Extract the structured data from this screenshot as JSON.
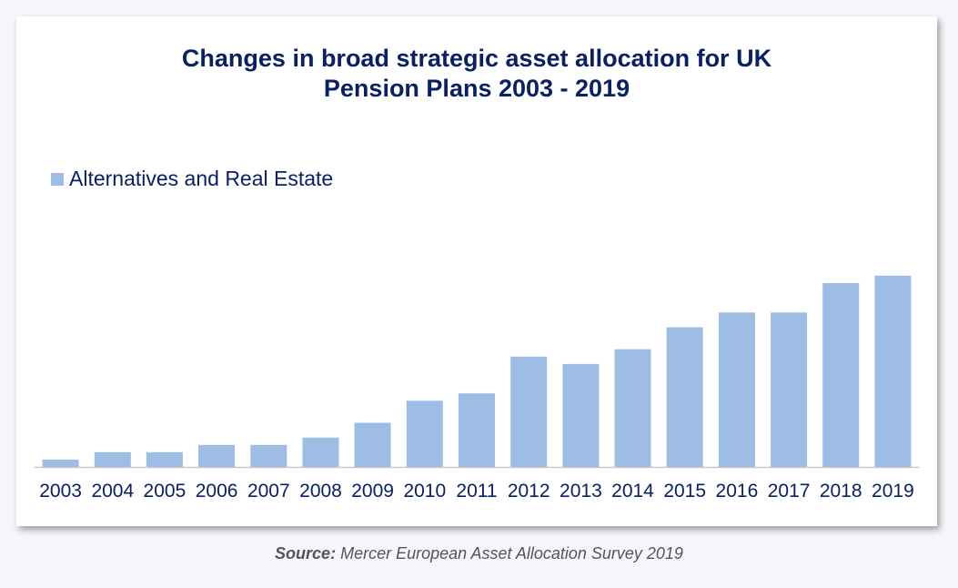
{
  "source": {
    "label": "Source:",
    "text": " Mercer European Asset Allocation Survey 2019"
  },
  "colors": {
    "bar": "#9dbde4",
    "title": "#0a2161",
    "axis_text": "#0a2161",
    "axis_line": "#c8c8c8"
  },
  "chart_data": {
    "type": "bar",
    "title_line1": "Changes in broad strategic asset allocation for UK",
    "title_line2": "Pension Plans 2003 - 2019",
    "legend_position": "top-left",
    "grid": false,
    "y_axis_shown": false,
    "ylim": [
      0,
      30
    ],
    "categories": [
      "2003",
      "2004",
      "2005",
      "2006",
      "2007",
      "2008",
      "2009",
      "2010",
      "2011",
      "2012",
      "2013",
      "2014",
      "2015",
      "2016",
      "2017",
      "2018",
      "2019"
    ],
    "series": [
      {
        "name": "Alternatives and Real Estate",
        "values": [
          1,
          2,
          2,
          3,
          3,
          4,
          6,
          9,
          10,
          15,
          14,
          16,
          19,
          21,
          21,
          25,
          26
        ]
      }
    ]
  }
}
